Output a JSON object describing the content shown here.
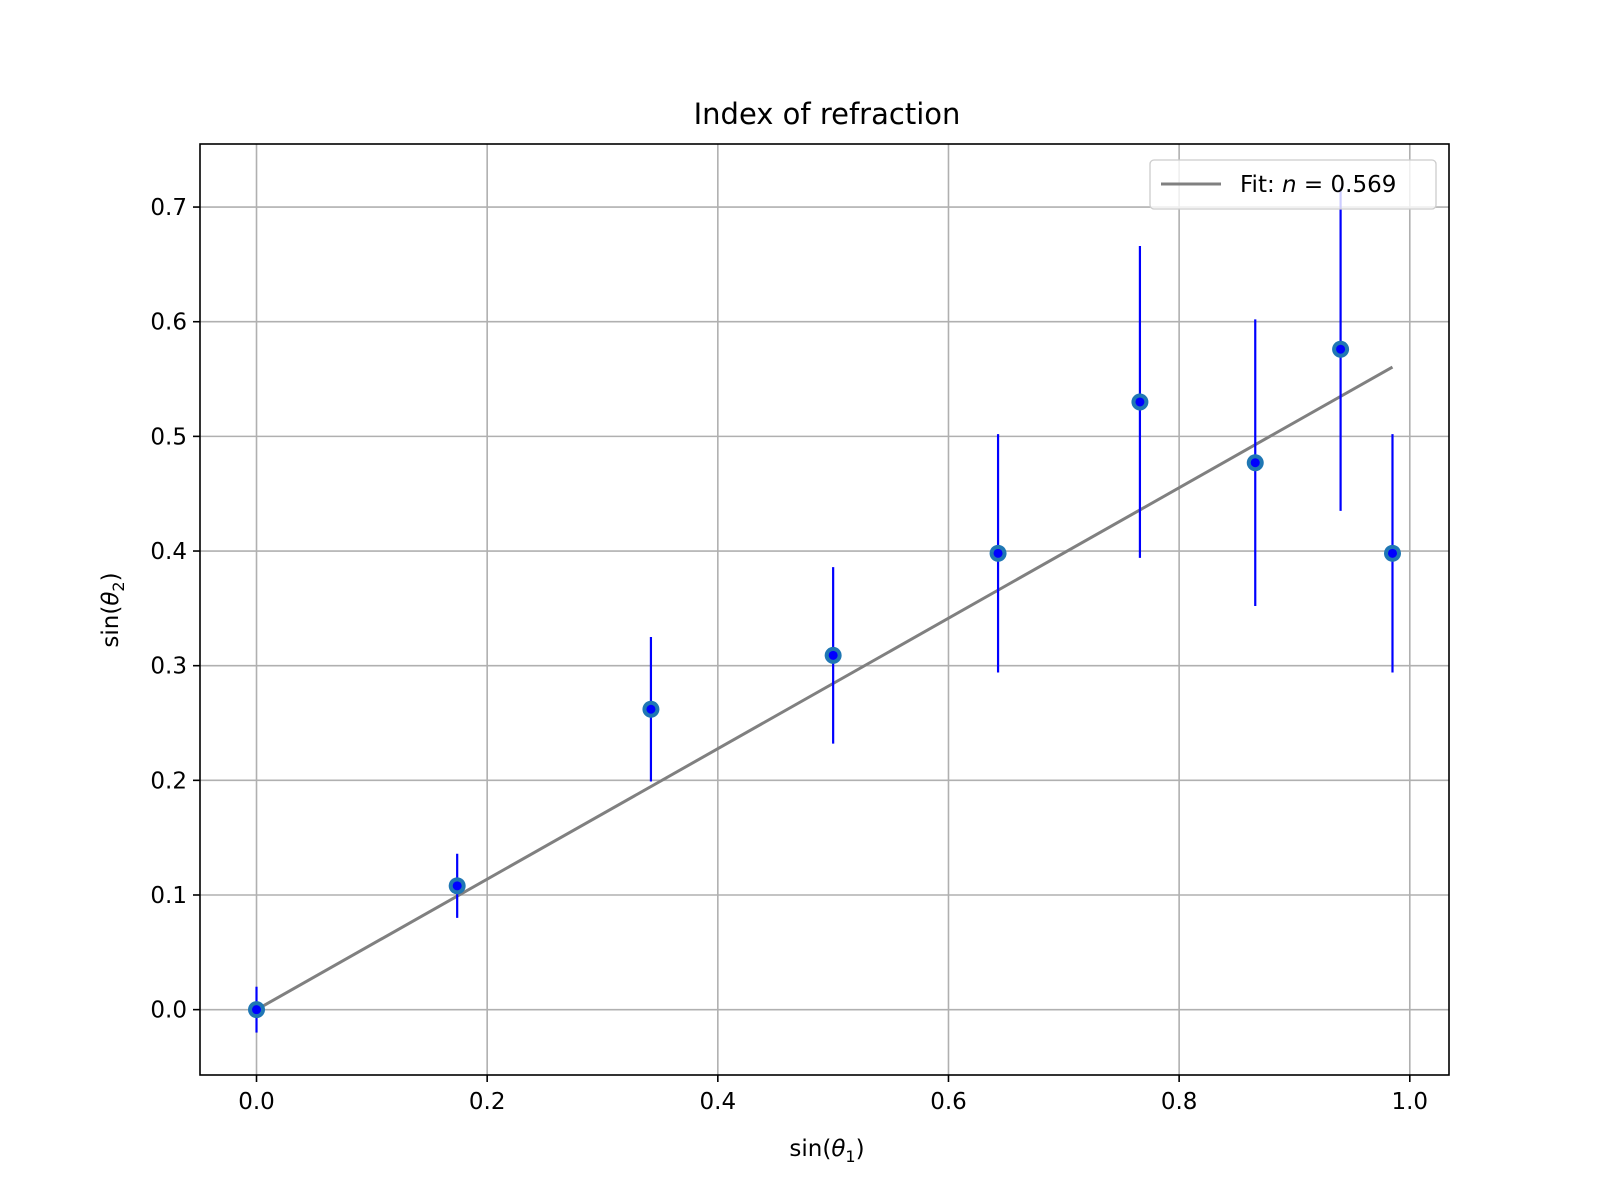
{
  "chart_data": {
    "type": "scatter",
    "title": "Index of refraction",
    "xlabel": {
      "prefix": "sin(",
      "symbol": "θ",
      "sub": "1",
      "suffix": ")"
    },
    "ylabel": {
      "prefix": "sin(",
      "symbol": "θ",
      "sub": "2",
      "suffix": ")"
    },
    "xlim": [
      -0.049,
      1.034
    ],
    "ylim": [
      -0.057,
      0.755
    ],
    "grid": true,
    "legend_position": "top-right",
    "x_ticks": [
      0.0,
      0.2,
      0.4,
      0.6,
      0.8,
      1.0
    ],
    "x_tick_labels": [
      "0.0",
      "0.2",
      "0.4",
      "0.6",
      "0.8",
      "1.0"
    ],
    "y_ticks": [
      0.0,
      0.1,
      0.2,
      0.3,
      0.4,
      0.5,
      0.6,
      0.7
    ],
    "y_tick_labels": [
      "0.0",
      "0.1",
      "0.2",
      "0.3",
      "0.4",
      "0.5",
      "0.6",
      "0.7"
    ],
    "data": {
      "x": [
        0.0,
        0.174,
        0.342,
        0.5,
        0.643,
        0.766,
        0.866,
        0.94,
        0.985
      ],
      "y": [
        0.0,
        0.108,
        0.262,
        0.309,
        0.398,
        0.53,
        0.477,
        0.576,
        0.398
      ],
      "yerr": [
        0.02,
        0.028,
        0.063,
        0.077,
        0.104,
        0.136,
        0.125,
        0.141,
        0.104
      ],
      "marker_color": "#1f77b4",
      "errorbar_color": "#0000ff"
    },
    "fit": {
      "label_prefix": "Fit: ",
      "label_var": "n",
      "label_value": " = 0.569",
      "slope": 0.569,
      "x_range": [
        0.0,
        0.985
      ],
      "color": "#808080"
    }
  }
}
